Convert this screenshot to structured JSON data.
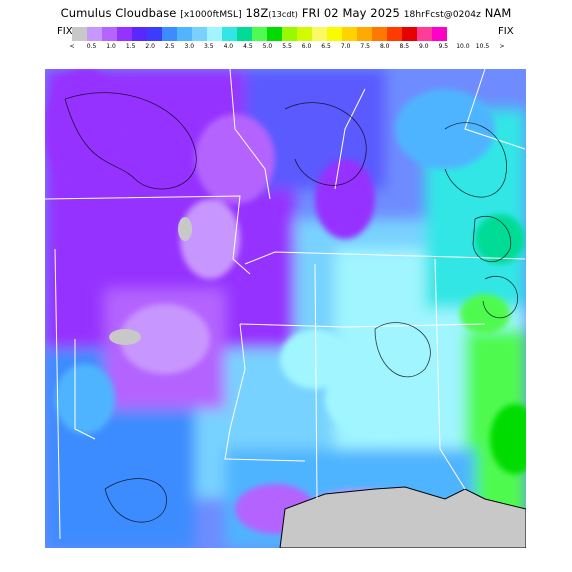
{
  "header": {
    "product": "Cumulus Cloudbase",
    "units": "[x1000ftMSL]",
    "valid_time": "18Z",
    "valid_local": "(13cdt)",
    "date": "FRI 02 May 2025",
    "forecast_info": "18hrFcst@0204z",
    "model": "NAM"
  },
  "colorbar": {
    "left_label": "FIX",
    "right_label": "FIX",
    "ticks": [
      "<",
      "0.5",
      "1.0",
      "1.5",
      "2.0",
      "2.5",
      "3.0",
      "3.5",
      "4.0",
      "4.5",
      "5.0",
      "5.5",
      "6.0",
      "6.5",
      "7.0",
      "7.5",
      "8.0",
      "8.5",
      "9.0",
      "9.5",
      "10.0",
      "10.5",
      ">"
    ],
    "colors": [
      "#c8c8c8",
      "#c896ff",
      "#b464ff",
      "#9632ff",
      "#5a28ff",
      "#3c3cff",
      "#3c8cff",
      "#50b4ff",
      "#78d2ff",
      "#a0f5ff",
      "#32e6e6",
      "#00dc96",
      "#50fa50",
      "#00dc00",
      "#96fa00",
      "#d2fa00",
      "#fafa64",
      "#fafa00",
      "#ffd200",
      "#ffaa00",
      "#ff7800",
      "#ff3c00",
      "#e60000",
      "#ff3c96",
      "#ff00c8"
    ]
  },
  "map": {
    "region": "South-central US"
  }
}
